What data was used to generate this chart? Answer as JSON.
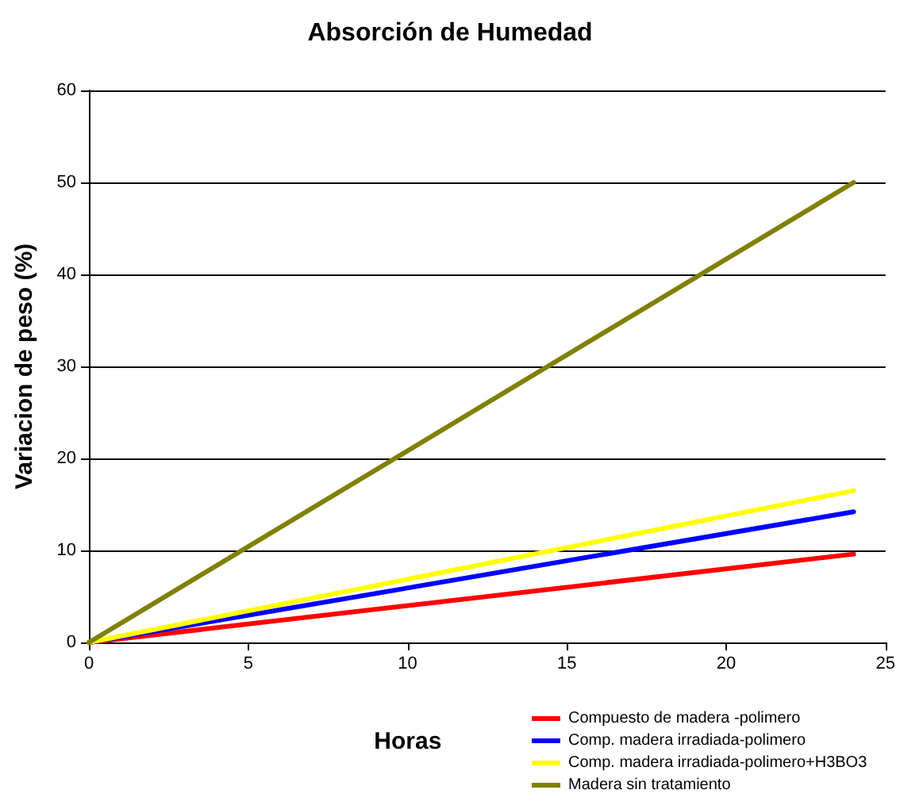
{
  "chart_data": {
    "type": "line",
    "title": "Absorción de Humedad",
    "xlabel": "Horas",
    "ylabel": "Variacion de peso (%)",
    "x": [
      0,
      24
    ],
    "series": [
      {
        "name": "Compuesto de madera -polimero",
        "color": "#ff0000",
        "values": [
          0,
          9.6
        ]
      },
      {
        "name": "Comp. madera irradiada-polimero",
        "color": "#0000ff",
        "values": [
          0,
          14.2
        ]
      },
      {
        "name": "Comp. madera irradiada-polimero+H3BO3",
        "color": "#ffff00",
        "values": [
          0,
          16.5
        ]
      },
      {
        "name": "Madera sin tratamiento",
        "color": "#808000",
        "values": [
          0,
          50
        ]
      }
    ],
    "xlim": [
      0,
      25
    ],
    "xticks": [
      0,
      5,
      10,
      15,
      20,
      25
    ],
    "ylim": [
      0,
      60
    ],
    "yticks": [
      0,
      10,
      20,
      30,
      40,
      50,
      60
    ],
    "grid": "y",
    "legend": "bottom right",
    "marker": "none",
    "line_style": "solid"
  }
}
